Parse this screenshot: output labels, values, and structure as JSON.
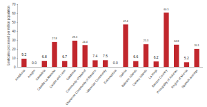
{
  "chart_data": {
    "type": "bar",
    "y_label": "Lenticules processed per million population",
    "categories": [
      "Andalusia",
      "Aragón",
      "Cantabria",
      "Castilla-La Mancha",
      "Castile and Leon",
      "Catalonia",
      "Community of Madrid",
      "Chartered Community of Navarre",
      "Valencian Community",
      "Extremadura",
      "Galicia",
      "Balearic Islands",
      "Canary Islands",
      "La Rioja",
      "Basque Country",
      "Principality of Asturias",
      "Region of Murcia",
      "Spanish average"
    ],
    "values": [
      9.2,
      0.0,
      6.8,
      27.8,
      6.7,
      29.3,
      24.4,
      7.4,
      7.5,
      0.0,
      47.4,
      6.6,
      25.3,
      6.2,
      60.5,
      24.8,
      5.2,
      20.1
    ],
    "value_labels": [
      "9.2",
      "0.0",
      "6.8",
      "27.8",
      "6.7",
      "29.3",
      "24.4",
      "7.4",
      "7.5",
      "0.0",
      "47.4",
      "6.6",
      "25.3",
      "6.2",
      "60.5",
      "24.8",
      "5.2",
      "20.1"
    ],
    "color": "#c1272d",
    "ylim": [
      0,
      70
    ],
    "yticks": [
      0,
      10,
      20,
      30,
      40,
      50,
      60,
      70
    ],
    "grid": false,
    "data_labels": true
  }
}
